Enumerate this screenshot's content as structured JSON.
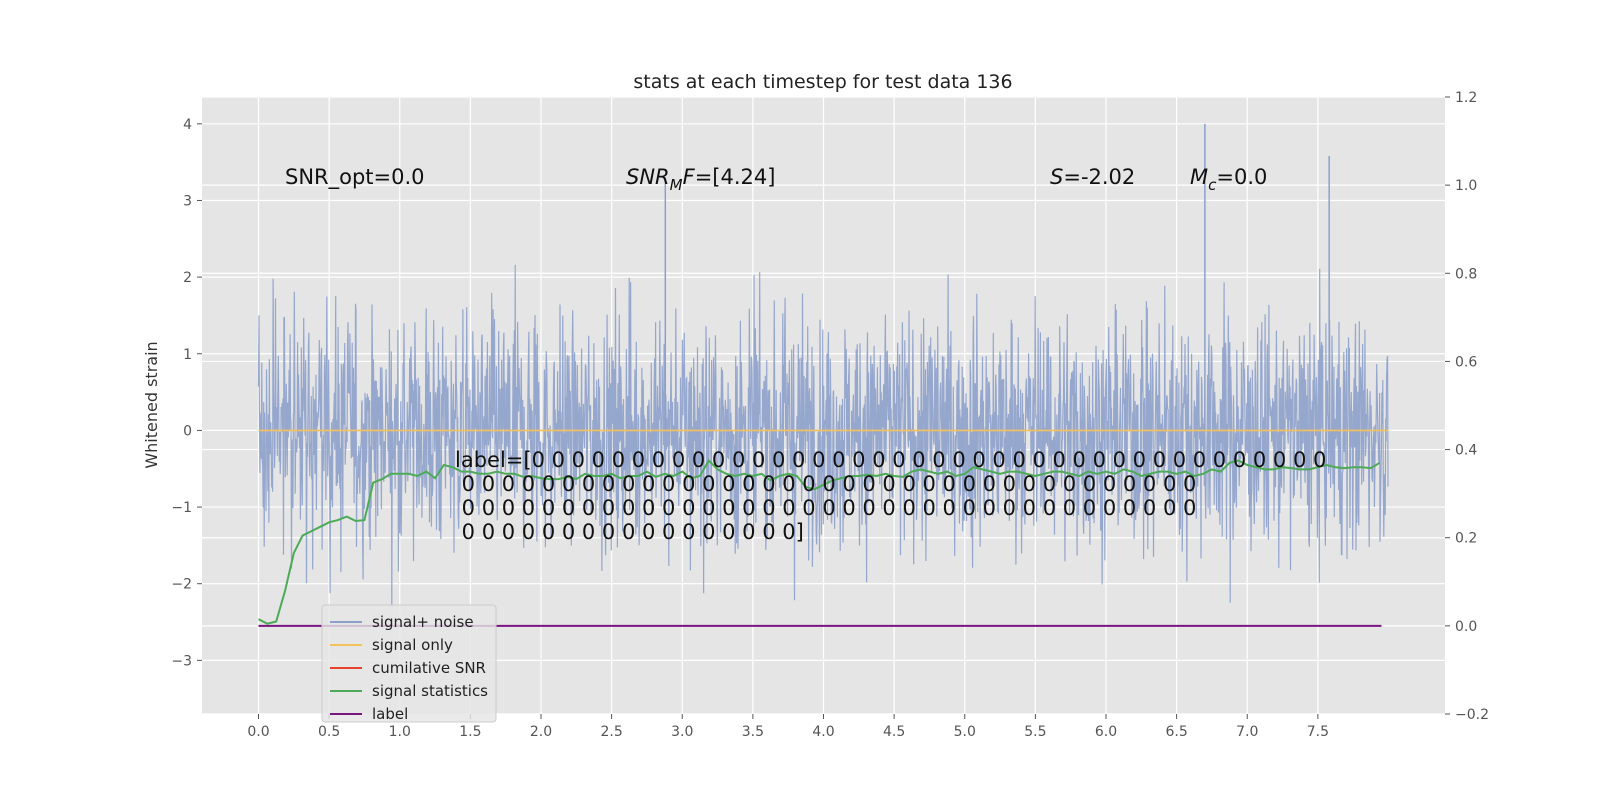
{
  "chart_data": {
    "type": "line",
    "title": "stats at each timestep for test data 136",
    "ylabel": "Whitened strain",
    "xlabel": "",
    "xlim": [
      -0.4,
      8.4
    ],
    "ylim": [
      -3.7,
      4.35
    ],
    "ylim_right": [
      -0.2,
      1.2
    ],
    "x_ticks": [
      "0.0",
      "0.5",
      "1.0",
      "1.5",
      "2.0",
      "2.5",
      "3.0",
      "3.5",
      "4.0",
      "4.5",
      "5.0",
      "5.5",
      "6.0",
      "6.5",
      "7.0",
      "7.5"
    ],
    "y_ticks": [
      "4",
      "3",
      "2",
      "1",
      "0",
      "−1",
      "−2",
      "−3"
    ],
    "y_ticks_right": [
      "1.2",
      "1.0",
      "0.8",
      "0.6",
      "0.4",
      "0.2",
      "0.0",
      "−0.2"
    ],
    "grid": true,
    "legend_position": "lower-left",
    "annotations": {
      "snr_opt": "SNR_opt=0.0",
      "snr_mf": "=[4.24]",
      "snr_mf_symbol": "SNR",
      "snr_mf_sub": "M",
      "snr_mf_f": "F",
      "s_symbol": "S",
      "s_value": "=-2.02",
      "mc_symbol": "M",
      "mc_sub": "c",
      "mc_value": "=0.0",
      "label_lines": [
        "label=[0 0 0 0 0 0 0 0 0 0 0 0 0 0 0 0 0 0 0 0 0 0 0 0 0 0 0 0 0 0 0 0 0 0 0 0 0 0 0 0",
        " 0 0 0 0 0 0 0 0 0 0 0 0 0 0 0 0 0 0 0 0 0 0 0 0 0 0 0 0 0 0 0 0 0 0 0 0 0",
        " 0 0 0 0 0 0 0 0 0 0 0 0 0 0 0 0 0 0 0 0 0 0 0 0 0 0 0 0 0 0 0 0 0 0 0 0 0",
        " 0 0 0 0 0 0 0 0 0 0 0 0 0 0 0 0 0]"
      ]
    },
    "series": [
      {
        "name": "signal+ noise",
        "color": "#8da0cb",
        "axis": "left",
        "style": "noise",
        "x_range": [
          0,
          8
        ],
        "approx_rms": 0.75,
        "peaks": [
          4.0,
          3.58,
          3.3
        ]
      },
      {
        "name": "signal only",
        "color": "#f5c15a",
        "axis": "left",
        "x": [
          0,
          8
        ],
        "y": [
          0.0,
          0.0
        ]
      },
      {
        "name": "cumilative SNR",
        "color": "#e8412c",
        "axis": "right",
        "x": [],
        "y": []
      },
      {
        "name": "signal statistics",
        "color": "#4daa57",
        "axis": "right",
        "x": [
          0.0,
          0.062,
          0.125,
          0.188,
          0.25,
          0.312,
          0.375,
          0.438,
          0.5,
          0.562,
          0.625,
          0.688,
          0.75,
          0.812,
          0.875,
          0.938,
          1.0,
          1.062,
          1.125,
          1.188,
          1.25,
          1.312,
          1.375,
          1.438,
          1.5,
          1.562,
          1.625,
          1.688,
          1.75,
          1.812,
          1.875,
          1.938,
          2.0,
          2.062,
          2.125,
          2.188,
          2.25,
          2.312,
          2.375,
          2.438,
          2.5,
          2.562,
          2.625,
          2.688,
          2.75,
          2.812,
          2.875,
          2.938,
          3.0,
          3.062,
          3.125,
          3.188,
          3.25,
          3.312,
          3.375,
          3.438,
          3.5,
          3.562,
          3.625,
          3.688,
          3.75,
          3.812,
          3.875,
          3.938,
          4.0,
          4.062,
          4.125,
          4.188,
          4.25,
          4.312,
          4.375,
          4.438,
          4.5,
          4.562,
          4.625,
          4.688,
          4.75,
          4.812,
          4.875,
          4.938,
          5.0,
          5.062,
          5.125,
          5.188,
          5.25,
          5.312,
          5.375,
          5.438,
          5.5,
          5.562,
          5.625,
          5.688,
          5.75,
          5.812,
          5.875,
          5.938,
          6.0,
          6.062,
          6.125,
          6.188,
          6.25,
          6.312,
          6.375,
          6.438,
          6.5,
          6.562,
          6.625,
          6.688,
          6.75,
          6.812,
          6.875,
          6.938,
          7.0,
          7.062,
          7.125,
          7.188,
          7.25,
          7.312,
          7.375,
          7.438,
          7.5,
          7.562,
          7.625,
          7.688,
          7.75,
          7.812,
          7.875,
          7.938
        ],
        "y": [
          0.015,
          0.005,
          0.01,
          0.08,
          0.165,
          0.205,
          0.215,
          0.225,
          0.235,
          0.24,
          0.248,
          0.238,
          0.24,
          0.325,
          0.333,
          0.345,
          0.345,
          0.345,
          0.34,
          0.35,
          0.335,
          0.365,
          0.36,
          0.35,
          0.35,
          0.345,
          0.345,
          0.35,
          0.345,
          0.345,
          0.338,
          0.34,
          0.335,
          0.333,
          0.333,
          0.338,
          0.333,
          0.345,
          0.34,
          0.34,
          0.345,
          0.335,
          0.34,
          0.34,
          0.35,
          0.338,
          0.345,
          0.34,
          0.35,
          0.335,
          0.34,
          0.375,
          0.355,
          0.345,
          0.34,
          0.345,
          0.34,
          0.345,
          0.33,
          0.34,
          0.345,
          0.34,
          0.315,
          0.31,
          0.32,
          0.33,
          0.335,
          0.34,
          0.34,
          0.343,
          0.34,
          0.345,
          0.34,
          0.338,
          0.35,
          0.355,
          0.35,
          0.345,
          0.35,
          0.34,
          0.345,
          0.36,
          0.355,
          0.35,
          0.345,
          0.35,
          0.35,
          0.345,
          0.34,
          0.345,
          0.35,
          0.35,
          0.345,
          0.34,
          0.35,
          0.345,
          0.35,
          0.345,
          0.355,
          0.35,
          0.34,
          0.345,
          0.35,
          0.35,
          0.345,
          0.35,
          0.34,
          0.345,
          0.355,
          0.35,
          0.37,
          0.375,
          0.365,
          0.36,
          0.355,
          0.355,
          0.36,
          0.358,
          0.355,
          0.355,
          0.36,
          0.365,
          0.36,
          0.358,
          0.36,
          0.36,
          0.358,
          0.37
        ]
      },
      {
        "name": "label",
        "color": "#7b1582",
        "axis": "right",
        "x": [
          0,
          7.95
        ],
        "y": [
          0.0,
          0.0
        ]
      }
    ]
  }
}
